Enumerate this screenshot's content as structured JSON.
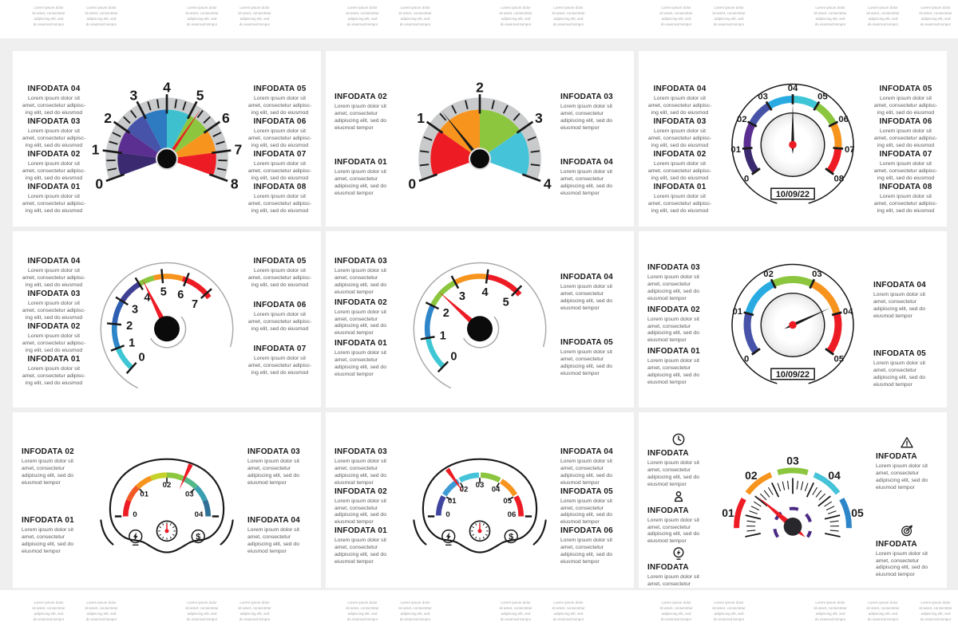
{
  "page": {
    "background": "#efefef",
    "card_background": "#ffffff"
  },
  "edge_strips": {
    "lines": [
      "Lorem ipsum dolor",
      "sit amet, consectetur",
      "adipiscing elit, sed",
      "do eiusmod tempor"
    ]
  },
  "palette": {
    "red": "#ED1C24",
    "orange": "#F7941E",
    "green": "#8CC63F",
    "cyan": "#45C3D8",
    "sky": "#29ABE2",
    "blue": "#2E86C9",
    "royal": "#4653A8",
    "indigo": "#4046A0",
    "purple": "#5B2E91",
    "dark_purple": "#3B2A70",
    "violet_dash": "#4B2A83",
    "ring_gray": "#C9CACB",
    "arc_gray": "#ABABAB",
    "ink": "#1A1A1A",
    "body_text": "#58595B"
  },
  "cards": [
    {
      "body": "Lorem ipsum dolor sit amet, consectetur adipisc- ing elit, sed do eiusmod",
      "left": [
        {
          "title": "INFODATA 04"
        },
        {
          "title": "INFODATA 03"
        },
        {
          "title": "INFODATA 02"
        },
        {
          "title": "INFODATA 01"
        }
      ],
      "right": [
        {
          "title": "INFODATA 05"
        },
        {
          "title": "INFODATA 06"
        },
        {
          "title": "INFODATA 07"
        },
        {
          "title": "INFODATA 08"
        }
      ]
    },
    {
      "body": "Lorem ipsum dolor sit amet, consectetur adipiscing elit, sed do eiusmod tempor",
      "left": [
        {
          "title": "INFODATA 02"
        },
        {
          "title": "INFODATA 01"
        }
      ],
      "right": [
        {
          "title": "INFODATA 03"
        },
        {
          "title": "INFODATA 04"
        }
      ]
    },
    {
      "body": "Lorem ipsum dolor sit amet, consectetur adipisc- ing elit, sed do eiusmod",
      "left": [
        {
          "title": "INFODATA 04"
        },
        {
          "title": "INFODATA 03"
        },
        {
          "title": "INFODATA 02"
        },
        {
          "title": "INFODATA 01"
        }
      ],
      "right": [
        {
          "title": "INFODATA 05"
        },
        {
          "title": "INFODATA 06"
        },
        {
          "title": "INFODATA 07"
        },
        {
          "title": "INFODATA 08"
        }
      ]
    },
    {
      "body": "Lorem ipsum dolor sit amet, consectetur adipisc- ing elit, sed do eiusmod",
      "left": [
        {
          "title": "INFODATA 04"
        },
        {
          "title": "INFODATA 03"
        },
        {
          "title": "INFODATA 02"
        },
        {
          "title": "INFODATA 01"
        }
      ],
      "right": [
        {
          "title": "INFODATA 05"
        },
        {
          "title": "INFODATA 06"
        },
        {
          "title": "INFODATA 07"
        }
      ]
    },
    {
      "body": "Lorem ipsum dolor sit amet, consectetur adipiscing elit, sed do eiusmod tempor",
      "left": [
        {
          "title": "INFODATA 03"
        },
        {
          "title": "INFODATA 02"
        },
        {
          "title": "INFODATA 01"
        }
      ],
      "right": [
        {
          "title": "INFODATA 04"
        },
        {
          "title": "INFODATA 05"
        }
      ]
    },
    {
      "body": "Lorem ipsum dolor sit amet, consectetur adipiscing elit, sed do eiusmod tempor",
      "left": [
        {
          "title": "INFODATA 03"
        },
        {
          "title": "INFODATA 02"
        },
        {
          "title": "INFODATA 01"
        }
      ],
      "right": [
        {
          "title": "INFODATA 04"
        },
        {
          "title": "INFODATA 05"
        }
      ]
    },
    {
      "body": "Lorem ipsum dolor sit amet, consectetur adipiscing elit, sed do eiusmod tempor",
      "left": [
        {
          "title": "INFODATA 02"
        },
        {
          "title": "INFODATA 01"
        }
      ],
      "right": [
        {
          "title": "INFODATA 03"
        },
        {
          "title": "INFODATA 04"
        }
      ]
    },
    {
      "body": "Lorem ipsum dolor sit amet, consectetur adipiscing elit, sed do eiusmod tempor",
      "left": [
        {
          "title": "INFODATA 03"
        },
        {
          "title": "INFODATA 02"
        },
        {
          "title": "INFODATA 01"
        }
      ],
      "right": [
        {
          "title": "INFODATA 04"
        },
        {
          "title": "INFODATA 05"
        },
        {
          "title": "INFODATA 06"
        }
      ]
    },
    {
      "body": "Lorem ipsum dolor sit amet, consectetur adipiscing elit, sed do eiusmod tempor",
      "left": [
        {
          "title": "INFODATA",
          "icon": "clock"
        },
        {
          "title": "INFODATA",
          "icon": "user"
        },
        {
          "title": "INFODATA",
          "icon": "bulb"
        }
      ],
      "right": [
        {
          "title": "INFODATA",
          "icon": "warning"
        },
        {
          "title": "INFODATA",
          "icon": "target"
        }
      ]
    }
  ],
  "chart_data": [
    {
      "type": "gauge",
      "style": "half_pie",
      "min": 0,
      "max": 8,
      "value": 5.25,
      "tick_labels": [
        "0",
        "1",
        "2",
        "3",
        "4",
        "5",
        "6",
        "7",
        "8"
      ],
      "minor_step": 0.3333,
      "segment_colors": [
        "#3B2A70",
        "#5B2E91",
        "#4653A8",
        "#2E7BC2",
        "#3EC0CE",
        "#8CC63F",
        "#F7941E",
        "#ED1C24"
      ],
      "needle_color": "#ED1C24",
      "ring_color": "#C9CACB"
    },
    {
      "type": "gauge",
      "style": "half_pie",
      "min": 0,
      "max": 4,
      "value": 1.3,
      "tick_labels": [
        "0",
        "1",
        "2",
        "3",
        "4"
      ],
      "minor_step": 0.25,
      "segment_colors": [
        "#ED1C24",
        "#F7941E",
        "#8CC63F",
        "#45C3D8"
      ],
      "needle_color": "#1A1A1A",
      "ring_color": "#C9CACB"
    },
    {
      "type": "gauge",
      "style": "round_dial",
      "min": 0,
      "max": 8,
      "value": 4,
      "date": "10/09/22",
      "tick_labels": [
        "0",
        "01",
        "02",
        "03",
        "04",
        "05",
        "06",
        "07",
        "08"
      ],
      "segment_colors": [
        "#3B2A70",
        "#5B2E91",
        "#4653A8",
        "#29ABE2",
        "#3EC6D6",
        "#8CC63F",
        "#F7941E",
        "#ED1C24"
      ]
    },
    {
      "type": "gauge",
      "style": "spiral",
      "min": 0,
      "max": 7,
      "value": 4.2,
      "start": 228,
      "per_unit": 26.6,
      "tick_labels": [
        "0",
        "1",
        "2",
        "3",
        "4",
        "5",
        "6",
        "7"
      ],
      "segments": [
        [
          0,
          1,
          "#3FC6D4"
        ],
        [
          1,
          2,
          "#2E86C9"
        ],
        [
          2,
          3,
          "#2F5FB0"
        ],
        [
          3,
          4,
          "#3F3F94"
        ],
        [
          4,
          4.65,
          "#8CC63F"
        ],
        [
          4.65,
          5.85,
          "#F7941E"
        ],
        [
          5.85,
          7.2,
          "#ED1C24"
        ]
      ]
    },
    {
      "type": "gauge",
      "style": "spiral",
      "min": 0,
      "max": 5,
      "value": 2.45,
      "start": 226,
      "per_unit": 36,
      "tick_labels": [
        "0",
        "1",
        "2",
        "3",
        "4",
        "5"
      ],
      "segments": [
        [
          0,
          1,
          "#3FC6D4"
        ],
        [
          1,
          2,
          "#2E86C9"
        ],
        [
          2,
          3,
          "#8CC63F"
        ],
        [
          3,
          4,
          "#F7941E"
        ],
        [
          4,
          5.15,
          "#ED1C24"
        ]
      ]
    },
    {
      "type": "gauge",
      "style": "round_dial",
      "min": 0,
      "max": 5,
      "value": 3.8,
      "date": "10/09/22",
      "tick_labels": [
        "0",
        "01",
        "02",
        "03",
        "04",
        "05"
      ],
      "segment_colors": [
        "#4653A8",
        "#29ABE2",
        "#8CC63F",
        "#F7941E",
        "#ED1C24"
      ]
    },
    {
      "type": "gauge",
      "style": "cluster",
      "min": 0,
      "max": 4,
      "value": 2.55,
      "tick_labels": [
        "0",
        "01",
        "02",
        "03",
        "04"
      ],
      "segments": [
        [
          0,
          0.5,
          "#ED1C24"
        ],
        [
          0.5,
          1,
          "#F15A24"
        ],
        [
          1,
          1.5,
          "#F7941E"
        ],
        [
          1.5,
          2,
          "#C5D22B"
        ],
        [
          2,
          2.5,
          "#8CC63F"
        ],
        [
          2.5,
          3,
          "#55B88A"
        ],
        [
          3,
          3.5,
          "#3A9FB0"
        ],
        [
          3.5,
          4,
          "#2E7096"
        ]
      ]
    },
    {
      "type": "gauge",
      "style": "cluster",
      "min": 0,
      "max": 6,
      "value": 1.85,
      "tick_labels": [
        "0",
        "01",
        "02",
        "03",
        "04",
        "05",
        "06"
      ],
      "segments": [
        [
          0.04,
          0.96,
          "#4046A0"
        ],
        [
          1.04,
          1.96,
          "#3E9BD6"
        ],
        [
          2.04,
          2.96,
          "#45C3D8"
        ],
        [
          3.04,
          3.96,
          "#8CC63F"
        ],
        [
          4.04,
          4.96,
          "#F7941E"
        ],
        [
          5.04,
          6,
          "#ED1C24"
        ]
      ]
    },
    {
      "type": "gauge",
      "style": "tick_speedo",
      "min": 1,
      "max": 5,
      "value": 1.7,
      "tick_labels": [
        "01",
        "02",
        "03",
        "04",
        "05"
      ],
      "segment_colors": [
        "#ED1C24",
        "#F7941E",
        "#8CC63F",
        "#45C3D8",
        "#2E86C9"
      ],
      "needle_color": "#ED1C24",
      "dash_color": "#4B2A83"
    }
  ]
}
